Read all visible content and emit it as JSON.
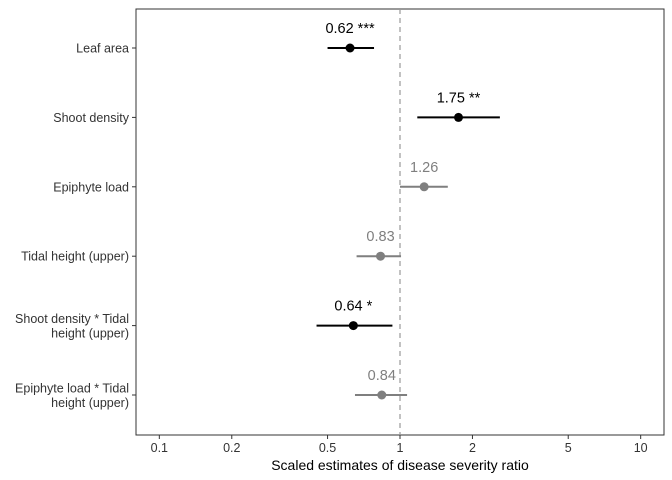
{
  "chart_data": {
    "type": "forest",
    "title": "",
    "xlabel": "Scaled estimates of disease severity ratio",
    "ylabel": "",
    "x_scale": "log",
    "xlim": [
      0.08,
      12.5
    ],
    "x_ticks": [
      0.1,
      0.2,
      0.5,
      1,
      2,
      5,
      10
    ],
    "x_tick_labels": [
      "0.1",
      "0.2",
      "0.5",
      "1",
      "2",
      "5",
      "10"
    ],
    "reference_line": 1,
    "grid": false,
    "legend": "none",
    "colors": {
      "significant": "#000000",
      "nonsignificant": "#7f7f7f",
      "reference": "#999999"
    },
    "rows": [
      {
        "term": [
          "Leaf area"
        ],
        "estimate": 0.62,
        "lower": 0.5,
        "upper": 0.78,
        "label": "0.62 ***",
        "significant": true
      },
      {
        "term": [
          "Shoot density"
        ],
        "estimate": 1.75,
        "lower": 1.18,
        "upper": 2.6,
        "label": "1.75 **",
        "significant": true
      },
      {
        "term": [
          "Epiphyte load"
        ],
        "estimate": 1.26,
        "lower": 1.0,
        "upper": 1.58,
        "label": "1.26",
        "significant": false
      },
      {
        "term": [
          "Tidal height (upper)"
        ],
        "estimate": 0.83,
        "lower": 0.66,
        "upper": 1.01,
        "label": "0.83",
        "significant": false
      },
      {
        "term": [
          "Shoot density * Tidal",
          "height (upper)"
        ],
        "estimate": 0.64,
        "lower": 0.45,
        "upper": 0.93,
        "label": "0.64 *",
        "significant": true
      },
      {
        "term": [
          "Epiphyte load * Tidal",
          "height (upper)"
        ],
        "estimate": 0.84,
        "lower": 0.65,
        "upper": 1.07,
        "label": "0.84",
        "significant": false
      }
    ]
  }
}
